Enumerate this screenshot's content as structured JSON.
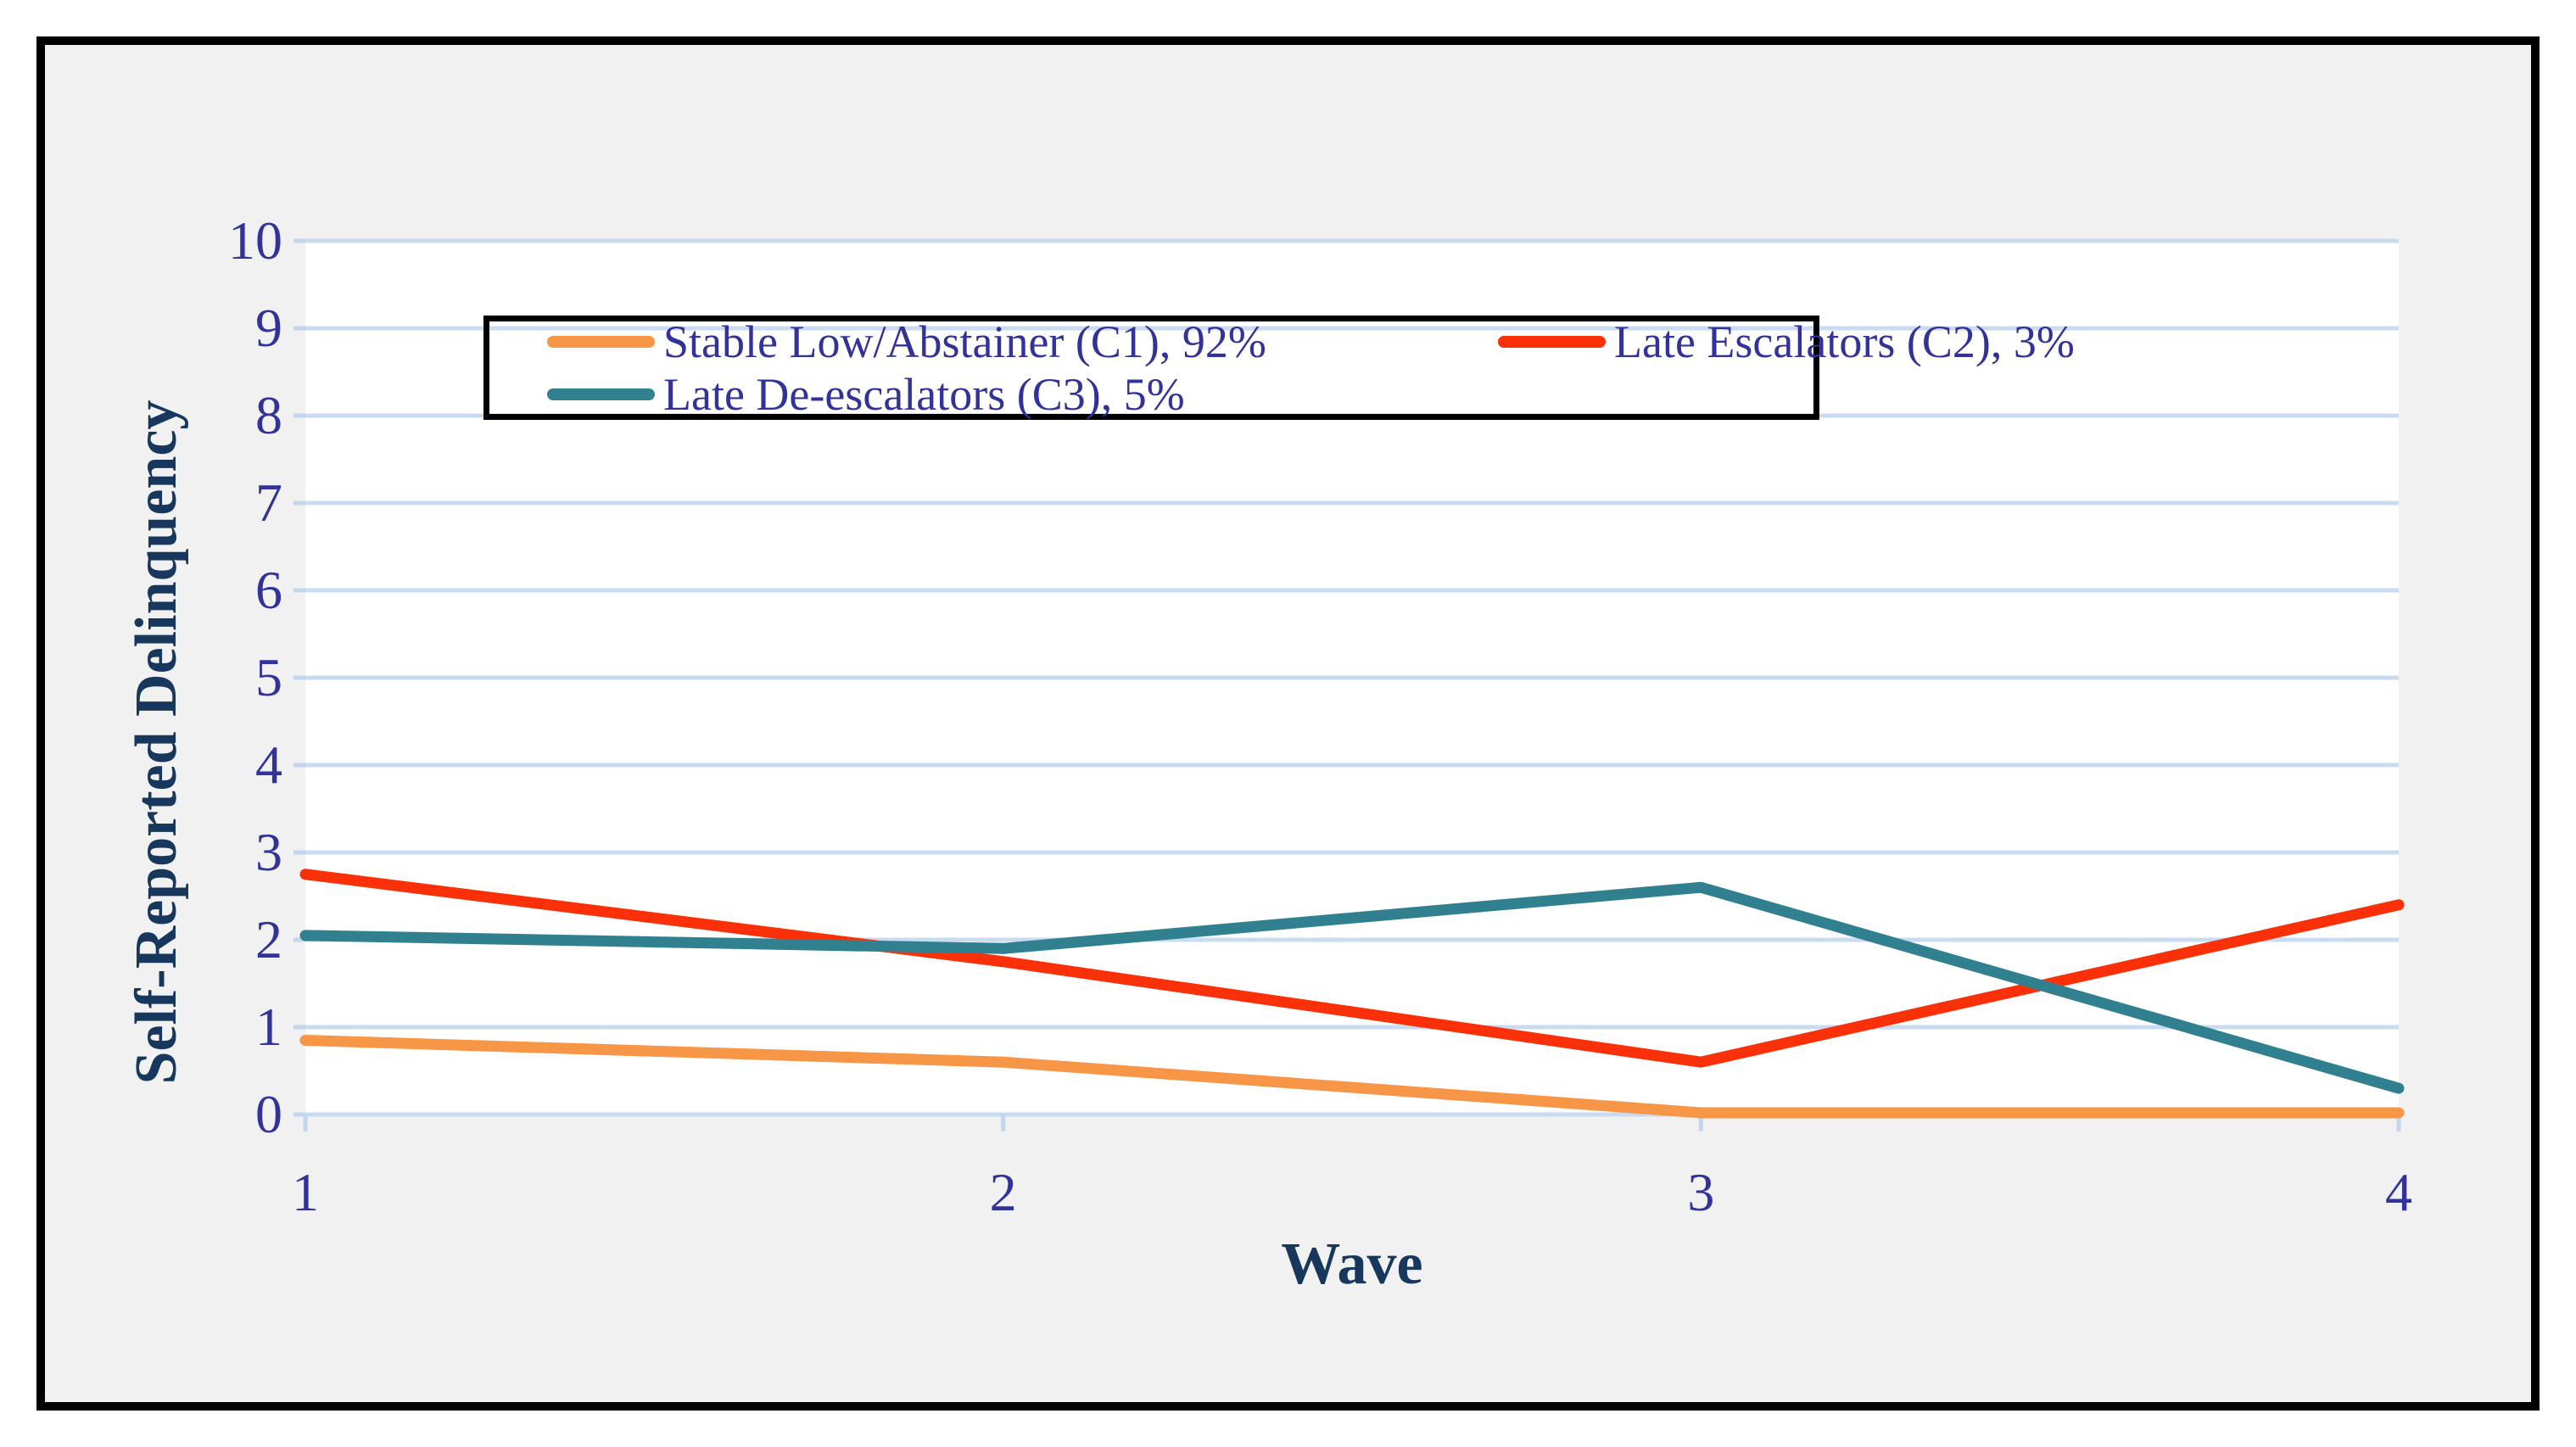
{
  "figure": {
    "page_background": "#FFFFFF",
    "frame_border_color": "#000000",
    "chart_background": "#F1F1F2",
    "plot_background": "#FFFFFF",
    "gridline_color": "#C9DBF0",
    "tick_mark_color": "#C2D6EE",
    "tick_label_color": "#32329B",
    "axis_title_color": "#17375D",
    "legend_text_color": "#32329B",
    "legend_border_color": "#000000"
  },
  "chart_data": {
    "type": "line",
    "title": "",
    "xlabel": "Wave",
    "ylabel": "Self-Reported Delinquency",
    "x": [
      1,
      2,
      3,
      4
    ],
    "x_tick_labels": [
      "1",
      "2",
      "3",
      "4"
    ],
    "y_ticks": [
      0,
      1,
      2,
      3,
      4,
      5,
      6,
      7,
      8,
      9,
      10
    ],
    "ylim": [
      0,
      10
    ],
    "grid": "horizontal",
    "legend_position": "top-inside",
    "series": [
      {
        "name": "Stable Low/Abstainer (C1), 92%",
        "color": "#F79646",
        "values": [
          0.85,
          0.6,
          0.02,
          0.02
        ]
      },
      {
        "name": "Late Escalators (C2), 3%",
        "color": "#F93008",
        "values": [
          2.75,
          1.75,
          0.6,
          2.4
        ]
      },
      {
        "name": "Late De-escalators (C3), 5%",
        "color": "#31808F",
        "values": [
          2.05,
          1.9,
          2.6,
          0.3
        ]
      }
    ]
  }
}
